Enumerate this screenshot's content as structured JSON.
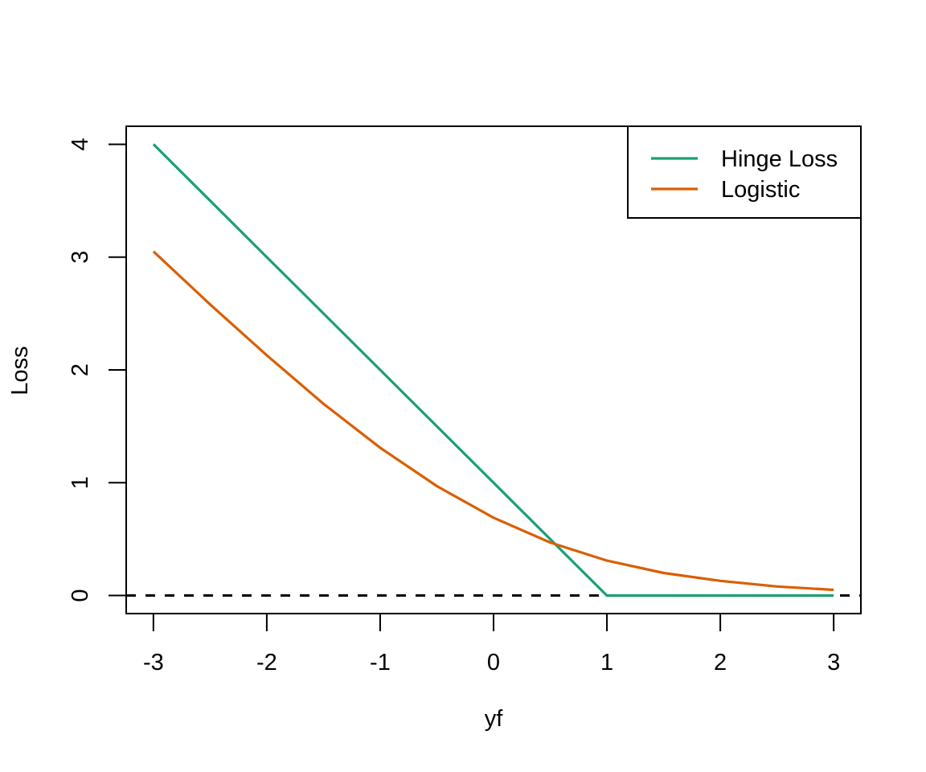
{
  "chart_data": {
    "type": "line",
    "title": "",
    "xlabel": "yf",
    "ylabel": "Loss",
    "xlim": [
      -3.24,
      3.24
    ],
    "ylim": [
      -0.16,
      4.16
    ],
    "x_ticks": [
      "-3",
      "-2",
      "-1",
      "0",
      "1",
      "2",
      "3"
    ],
    "y_ticks": [
      "0",
      "1",
      "2",
      "3",
      "4"
    ],
    "grid": false,
    "legend_position": "top-right",
    "reference_line": {
      "y": 0,
      "style": "dashed",
      "color": "#000000"
    },
    "series": [
      {
        "name": "Hinge Loss",
        "color": "#1b9e77",
        "x": [
          -3,
          -2,
          -1,
          0,
          1,
          2,
          3
        ],
        "y": [
          4,
          3,
          2,
          1,
          0,
          0,
          0
        ]
      },
      {
        "name": "Logistic",
        "color": "#d95f02",
        "x": [
          -3,
          -2.5,
          -2,
          -1.5,
          -1,
          -0.5,
          0,
          0.5,
          1,
          1.5,
          2,
          2.5,
          3
        ],
        "y": [
          3.05,
          2.58,
          2.13,
          1.7,
          1.31,
          0.97,
          0.69,
          0.47,
          0.31,
          0.2,
          0.13,
          0.08,
          0.05
        ]
      }
    ]
  }
}
